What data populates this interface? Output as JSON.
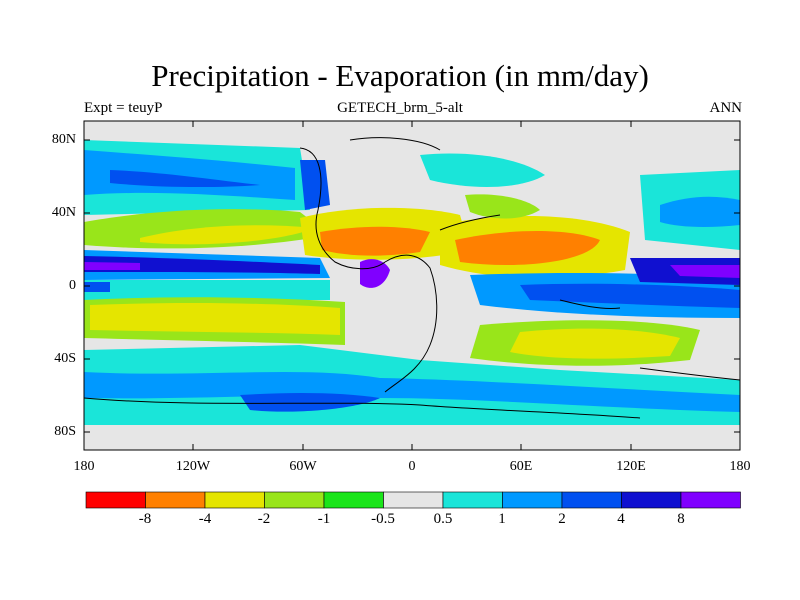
{
  "title": "Precipitation - Evaporation (in mm/day)",
  "left_subtitle": "Expt = teuyP",
  "center_subtitle": "GETECH_brm_5-alt",
  "right_subtitle": "ANN",
  "y_tick_labels": [
    "80N",
    "40N",
    "0",
    "40S",
    "80S"
  ],
  "x_tick_labels": [
    "180",
    "120W",
    "60W",
    "0",
    "60E",
    "120E",
    "180"
  ],
  "colorbar": {
    "labels": [
      "-8",
      "-4",
      "-2",
      "-1",
      "-0.5",
      "0.5",
      "1",
      "2",
      "4",
      "8"
    ],
    "colors": [
      "#ff0000",
      "#ff8000",
      "#e5e500",
      "#99e51a",
      "#1ae51a",
      "#e6e6e6",
      "#1ae5d9",
      "#0099ff",
      "#0050f0",
      "#1010d0",
      "#8000ff"
    ]
  }
}
